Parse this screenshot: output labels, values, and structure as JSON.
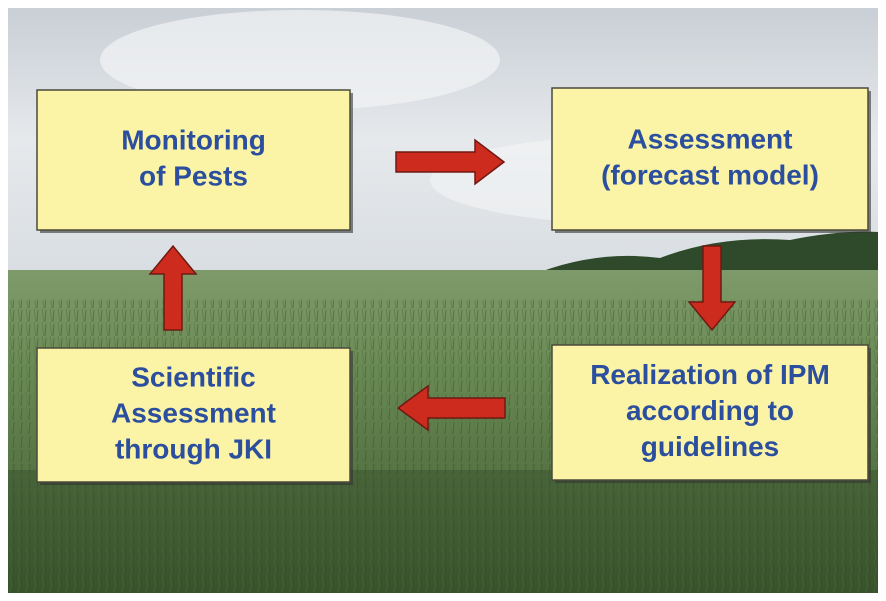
{
  "nodes": [
    {
      "lines": [
        "Monitoring",
        "of Pests"
      ]
    },
    {
      "lines": [
        "Assessment",
        "(forecast model)"
      ]
    },
    {
      "lines": [
        "Realization of IPM",
        "according to",
        "guidelines"
      ]
    },
    {
      "lines": [
        "Scientific",
        "Assessment",
        "through JKI"
      ]
    }
  ]
}
